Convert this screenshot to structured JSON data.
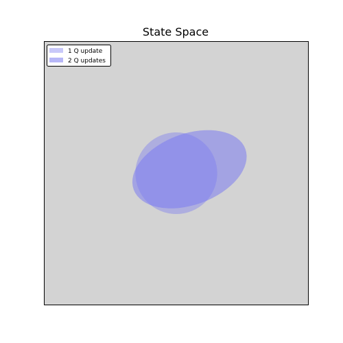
{
  "chart_data": {
    "type": "scatter",
    "title": "State Space",
    "xlabel": "",
    "ylabel": "",
    "xlim": [
      -1,
      1
    ],
    "ylim": [
      -1,
      1
    ],
    "grid": false,
    "axis_ticks": false,
    "legend_position": "top-left",
    "plot_background": "#d3d3d3",
    "series": [
      {
        "name": "1 Q update",
        "shape": "ellipse",
        "center": [
          0.0,
          0.0
        ],
        "semi_axes": [
          0.31,
          0.31
        ],
        "rotation_deg": 0,
        "color": "#7b7bf0",
        "opacity": 0.42
      },
      {
        "name": "2 Q updates",
        "shape": "ellipse",
        "center": [
          0.1,
          0.03
        ],
        "semi_axes": [
          0.45,
          0.27
        ],
        "rotation_deg": 20,
        "color": "#7b7bf0",
        "opacity": 0.55
      }
    ]
  }
}
